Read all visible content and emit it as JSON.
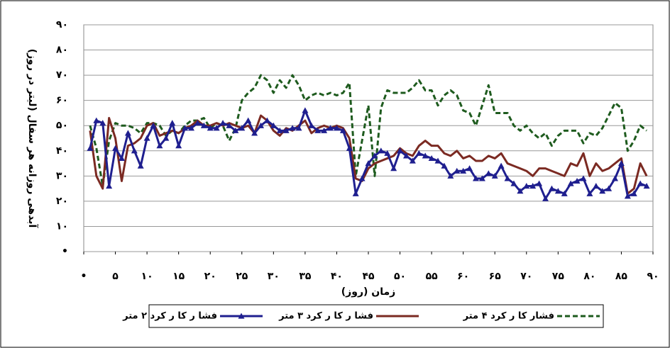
{
  "chart_data": {
    "type": "line",
    "y_label": "آبدهی روزانه هر سفال (لیتر در روز)",
    "x_label": "زمان (روز)",
    "x": [
      1,
      2,
      3,
      4,
      5,
      6,
      7,
      8,
      9,
      10,
      11,
      12,
      13,
      14,
      15,
      16,
      17,
      18,
      19,
      20,
      21,
      22,
      23,
      24,
      25,
      26,
      27,
      28,
      29,
      30,
      31,
      32,
      33,
      34,
      35,
      36,
      37,
      38,
      39,
      40,
      41,
      42,
      43,
      44,
      45,
      46,
      47,
      48,
      49,
      50,
      51,
      52,
      53,
      54,
      55,
      56,
      57,
      58,
      59,
      60,
      61,
      62,
      63,
      64,
      65,
      66,
      67,
      68,
      69,
      70,
      71,
      72,
      73,
      74,
      75,
      76,
      77,
      78,
      79,
      80,
      81,
      82,
      83,
      84,
      85,
      86,
      87,
      88,
      89
    ],
    "series": [
      {
        "name": "فشا ر کا ر کرد ۲ متر",
        "color": "#1f1f8f",
        "line_style": "solid",
        "marker": "triangle",
        "values": [
          41,
          52,
          51,
          26,
          41,
          37,
          47,
          40,
          34,
          45,
          50,
          42,
          45,
          51,
          42,
          49,
          49,
          51,
          50,
          49,
          49,
          51,
          50,
          48,
          49,
          52,
          47,
          50,
          52,
          50,
          48,
          48,
          49,
          49,
          56,
          50,
          48,
          48,
          49,
          49,
          48,
          41,
          23,
          29,
          35,
          38,
          40,
          39,
          33,
          40,
          38,
          36,
          39,
          38,
          37,
          36,
          34,
          30,
          32,
          32,
          33,
          29,
          29,
          31,
          30,
          34,
          29,
          27,
          24,
          26,
          26,
          27,
          21,
          25,
          24,
          23,
          27,
          28,
          29,
          23,
          26,
          24,
          25,
          29,
          35,
          22,
          23,
          27,
          26
        ]
      },
      {
        "name": "فشا ر کا ر کرد ۳ متر",
        "color": "#7b2a22",
        "line_style": "solid",
        "marker": "none",
        "values": [
          48,
          30,
          25,
          53,
          45,
          28,
          42,
          43,
          45,
          50,
          51,
          46,
          47,
          48,
          47,
          49,
          50,
          52,
          50,
          50,
          51,
          50,
          51,
          50,
          49,
          50,
          47,
          54,
          52,
          48,
          46,
          49,
          48,
          50,
          52,
          47,
          49,
          50,
          49,
          50,
          49,
          45,
          29,
          28,
          33,
          35,
          36,
          37,
          38,
          41,
          39,
          38,
          42,
          44,
          42,
          42,
          39,
          38,
          40,
          37,
          38,
          36,
          36,
          38,
          37,
          39,
          35,
          34,
          33,
          32,
          30,
          33,
          33,
          32,
          31,
          30,
          35,
          34,
          39,
          30,
          35,
          32,
          33,
          35,
          37,
          23,
          25,
          35,
          30
        ]
      },
      {
        "name": "فشار کا ر کرد ۴ متر",
        "color": "#1e5b1e",
        "line_style": "dashed",
        "marker": "none",
        "values": [
          50,
          41,
          26,
          44,
          51,
          50,
          50,
          49,
          47,
          51,
          51,
          50,
          46,
          48,
          47,
          50,
          52,
          52,
          53,
          49,
          51,
          50,
          44,
          49,
          60,
          63,
          65,
          70,
          68,
          63,
          68,
          65,
          70,
          66,
          60,
          62,
          63,
          62,
          63,
          62,
          63,
          67,
          30,
          44,
          58,
          30,
          57,
          64,
          63,
          63,
          63,
          65,
          68,
          64,
          64,
          58,
          62,
          64,
          62,
          56,
          55,
          50,
          58,
          66,
          55,
          55,
          55,
          50,
          48,
          50,
          47,
          45,
          47,
          42,
          46,
          48,
          48,
          48,
          43,
          47,
          46,
          49,
          54,
          59,
          57,
          40,
          44,
          50,
          48
        ]
      }
    ],
    "xlim": [
      0,
      90
    ],
    "xticks": [
      {
        "value": 0,
        "label": "•"
      },
      {
        "value": 5,
        "label": "۵"
      },
      {
        "value": 10,
        "label": "۱۰"
      },
      {
        "value": 15,
        "label": "۱۵"
      },
      {
        "value": 20,
        "label": "۲۰"
      },
      {
        "value": 25,
        "label": "۲۵"
      },
      {
        "value": 30,
        "label": "۳۰"
      },
      {
        "value": 35,
        "label": "۳۵"
      },
      {
        "value": 40,
        "label": "۴۰"
      },
      {
        "value": 45,
        "label": "۴۵"
      },
      {
        "value": 50,
        "label": "۵۰"
      },
      {
        "value": 55,
        "label": "۵۵"
      },
      {
        "value": 60,
        "label": "۶۰"
      },
      {
        "value": 65,
        "label": "۶۵"
      },
      {
        "value": 70,
        "label": "۷۰"
      },
      {
        "value": 75,
        "label": "۷۵"
      },
      {
        "value": 80,
        "label": "۸۰"
      },
      {
        "value": 85,
        "label": "۸۵"
      },
      {
        "value": 90,
        "label": "۹۰"
      }
    ],
    "ylim": [
      0,
      90
    ],
    "yticks": [
      {
        "value": 0,
        "label": "•"
      },
      {
        "value": 10,
        "label": "۱۰"
      },
      {
        "value": 20,
        "label": "۲۰"
      },
      {
        "value": 30,
        "label": "۳۰"
      },
      {
        "value": 40,
        "label": "۴۰"
      },
      {
        "value": 50,
        "label": "۵۰"
      },
      {
        "value": 60,
        "label": "۶۰"
      },
      {
        "value": 70,
        "label": "۷۰"
      },
      {
        "value": 80,
        "label": "۸۰"
      },
      {
        "value": 90,
        "label": "۹۰"
      }
    ],
    "grid": true
  }
}
